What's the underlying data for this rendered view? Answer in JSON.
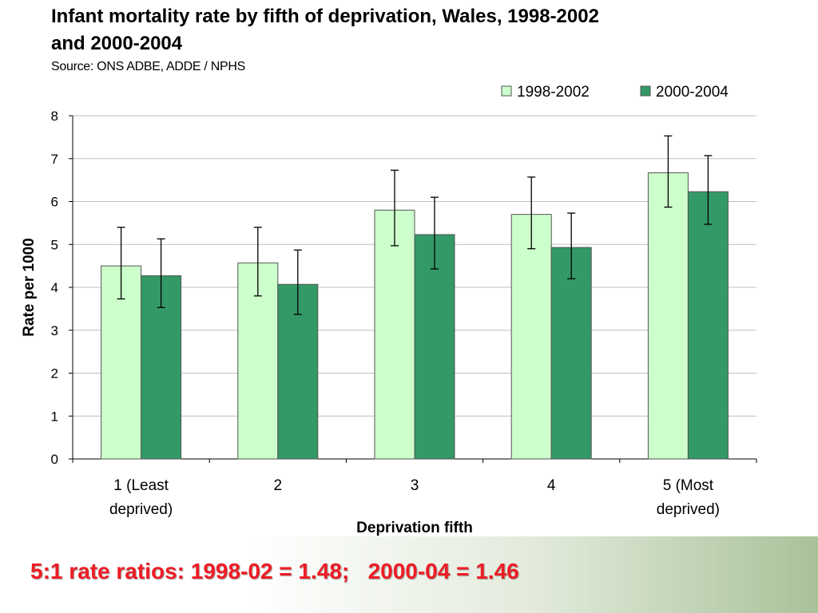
{
  "slide": {
    "title": "Infant mortality rate by fifth of deprivation, Wales, 1998-2002 and 2000-2004",
    "source": "Source: ONS ADBE, ADDE / NPHS",
    "footer": "5:1 rate ratios: 1998-02 = 1.48;   2000-04 = 1.46"
  },
  "colors": {
    "series_1998": "#ccffcc",
    "series_2000": "#339966",
    "footer_text": "#ee1c25",
    "gridline": "#bfbfbf"
  },
  "chart_data": {
    "type": "bar",
    "xlabel": "Deprivation fifth",
    "ylabel": "Rate per 1000",
    "ylim": [
      0,
      8
    ],
    "yticks": [
      0,
      1,
      2,
      3,
      4,
      5,
      6,
      7,
      8
    ],
    "grid": true,
    "legend_position": "top-right",
    "categories": [
      [
        "1 (Least",
        "deprived)"
      ],
      [
        "2"
      ],
      [
        "3"
      ],
      [
        "4"
      ],
      [
        "5 (Most",
        "deprived)"
      ]
    ],
    "series": [
      {
        "name": "1998-2002",
        "values": [
          4.5,
          4.57,
          5.8,
          5.7,
          6.67
        ],
        "error_low": [
          3.73,
          3.8,
          4.97,
          4.9,
          5.87
        ],
        "error_high": [
          5.4,
          5.4,
          6.73,
          6.57,
          7.53
        ]
      },
      {
        "name": "2000-2004",
        "values": [
          4.27,
          4.07,
          5.23,
          4.93,
          6.23
        ],
        "error_low": [
          3.53,
          3.37,
          4.43,
          4.2,
          5.47
        ],
        "error_high": [
          5.13,
          4.87,
          6.1,
          5.73,
          7.07
        ]
      }
    ]
  }
}
